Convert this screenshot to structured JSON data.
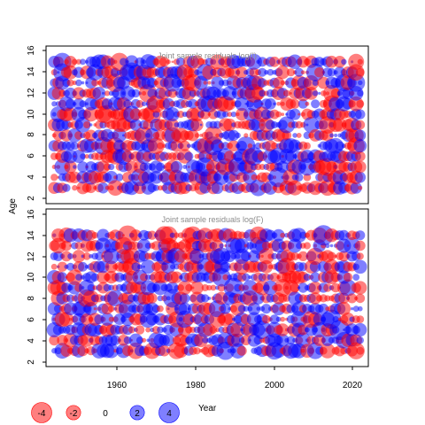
{
  "colors": {
    "positive": "#0000ff",
    "negative": "#ff0000",
    "title": "#8c8c8c"
  },
  "chart_data": [
    {
      "type": "scatter",
      "subtype": "bubble",
      "title": "Joint sample residuals log(I)",
      "xlabel": "Year",
      "ylabel": "Age",
      "xlim": [
        1944,
        2023
      ],
      "ylim": [
        1.5,
        16.5
      ],
      "x_range": [
        1946,
        2021
      ],
      "y_range": [
        3,
        15
      ],
      "xticks": [
        1960,
        1980,
        2000,
        2020
      ],
      "yticks": [
        2,
        4,
        6,
        8,
        10,
        12,
        14,
        16
      ],
      "grid": false,
      "max_abs_residual": 4,
      "residual_pattern": "mixed"
    },
    {
      "type": "scatter",
      "subtype": "bubble",
      "title": "Joint sample residuals log(F)",
      "xlabel": "Year",
      "ylabel": "Age",
      "xlim": [
        1944,
        2023
      ],
      "ylim": [
        1.5,
        16.5
      ],
      "x_range": [
        1946,
        2021
      ],
      "y_range": [
        3,
        14
      ],
      "xticks": [
        1960,
        1980,
        2000,
        2020
      ],
      "yticks": [
        2,
        4,
        6,
        8,
        10,
        12,
        14,
        16
      ],
      "grid": false,
      "max_abs_residual": 4,
      "residual_pattern": "mixed"
    }
  ],
  "legend": {
    "placement": "bottom-left",
    "items": [
      {
        "label": "-4",
        "value": -4
      },
      {
        "label": "-2",
        "value": -2
      },
      {
        "label": "0",
        "value": 0
      },
      {
        "label": "2",
        "value": 2
      },
      {
        "label": "4",
        "value": 4
      }
    ]
  },
  "labels": {
    "ylabel": "Age",
    "xlabel": "Year",
    "top_title": "Joint sample residuals log(I)",
    "bottom_title": "Joint sample residuals log(F)",
    "xticks": [
      "1960",
      "1980",
      "2000",
      "2020"
    ],
    "yticks": [
      "2",
      "4",
      "6",
      "8",
      "10",
      "12",
      "14",
      "16"
    ]
  }
}
